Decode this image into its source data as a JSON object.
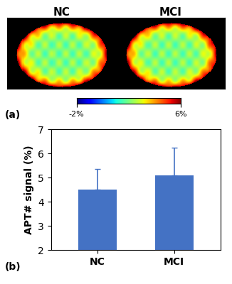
{
  "image_panel": {
    "panel_label": "(a)",
    "image_labels": [
      "NC",
      "MCI"
    ],
    "colorbar": {
      "range": [
        -2,
        6
      ],
      "ticks": [
        {
          "value": -2,
          "label": "-2%"
        },
        {
          "value": 6,
          "label": "6%"
        }
      ]
    }
  },
  "chart_data": {
    "type": "bar",
    "panel_label": "(b)",
    "y_label": "APT# signal (%)",
    "categories": [
      "NC",
      "MCI"
    ],
    "values": [
      4.5,
      5.1
    ],
    "errors": [
      0.85,
      1.15
    ],
    "color": "#4472c4",
    "ylim": [
      2,
      7
    ],
    "yticks": [
      2,
      3,
      4,
      5,
      6,
      7
    ],
    "grid": false
  }
}
